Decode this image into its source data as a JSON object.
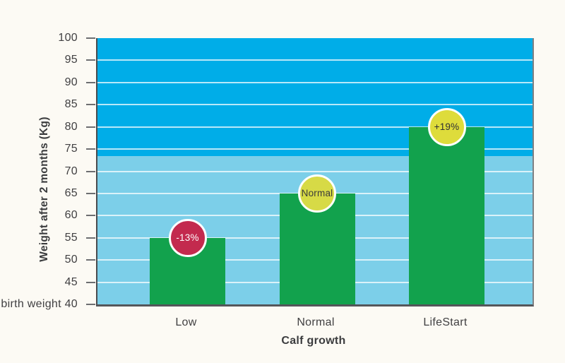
{
  "page": {
    "background": "#fcfaf4"
  },
  "chart_data": {
    "type": "bar",
    "title": "",
    "categories": [
      "Low",
      "Normal",
      "LifeStart"
    ],
    "values": [
      55,
      65,
      80
    ],
    "badges": [
      {
        "label": "-13%",
        "fill": "#c32a4e",
        "text_color": "#ffffff"
      },
      {
        "label": "Normal",
        "fill": "#d7da46",
        "text_color": "#3b3b3b"
      },
      {
        "label": "+19%",
        "fill": "#dedc3b",
        "text_color": "#303134"
      }
    ],
    "xlabel": "Calf growth",
    "ylabel": "Weight after 2 months (Kg)",
    "baseline_label": "birth weight",
    "ylim": [
      40,
      100
    ],
    "ytick_step": 5,
    "yticks": [
      40,
      45,
      50,
      55,
      60,
      65,
      70,
      75,
      80,
      85,
      90,
      95,
      100
    ],
    "grid": true,
    "legend": "none",
    "band_split_value": 73.5,
    "colors": {
      "bar": "#12a24d",
      "band_upper": "#00ade8",
      "band_lower": "#7ccfe9",
      "gridline": "rgba(255,255,255,0.72)",
      "axis_text": "#414042",
      "axis_line": "#4a4b4e",
      "page_background": "#fcfaf4"
    }
  }
}
